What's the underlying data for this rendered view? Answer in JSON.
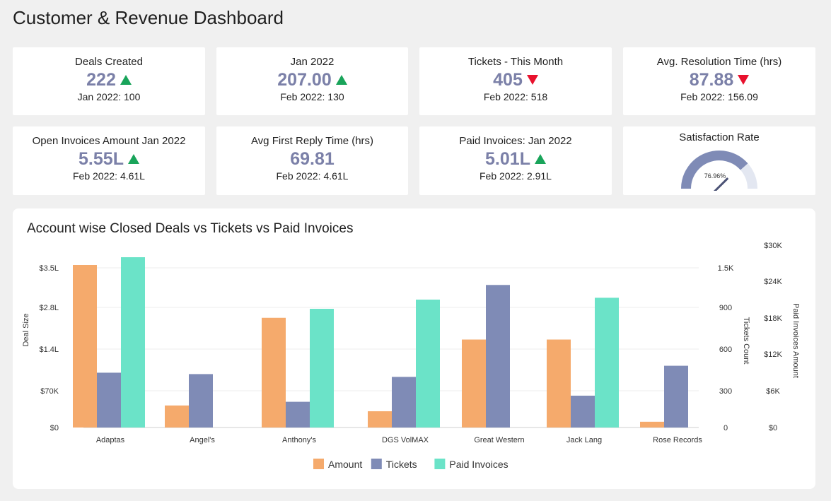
{
  "page": {
    "title": "Customer & Revenue Dashboard"
  },
  "colors": {
    "amount": "#f5aa6c",
    "tickets": "#7f8bb6",
    "paid": "#6be3c8",
    "up": "#19a45a",
    "down": "#e8112d",
    "value": "#7b80a8"
  },
  "kpis": [
    {
      "label": "Deals Created",
      "value": "222",
      "trend": "up",
      "sub": "Jan 2022: 100"
    },
    {
      "label": "Jan 2022",
      "value": "207.00",
      "trend": "up",
      "sub": "Feb 2022: 130"
    },
    {
      "label": "Tickets - This Month",
      "value": "405",
      "trend": "down",
      "sub": "Feb 2022: 518"
    },
    {
      "label": "Avg. Resolution Time (hrs)",
      "value": "87.88",
      "trend": "down",
      "sub": "Feb 2022: 156.09"
    },
    {
      "label": "Open Invoices Amount Jan 2022",
      "value": "5.55L",
      "trend": "up",
      "sub": "Feb 2022: 4.61L"
    },
    {
      "label": "Avg First Reply Time (hrs)",
      "value": "69.81",
      "trend": "none",
      "sub": "Feb 2022: 4.61L"
    },
    {
      "label": "Paid Invoices: Jan 2022",
      "value": "5.01L",
      "trend": "up",
      "sub": "Feb 2022: 2.91L"
    }
  ],
  "gauge": {
    "label": "Satisfaction Rate",
    "value_label": "76.96%",
    "value": 76.96
  },
  "chart_data": {
    "type": "bar",
    "title": "Account wise Closed Deals vs Tickets vs Paid Invoices",
    "categories": [
      "Adaptas",
      "Angel's",
      "Anthony's",
      "DGS VolMAX",
      "Great Western",
      "Jack Lang",
      "Rose Records"
    ],
    "ylabel": "Deal Size",
    "y2label": "Tickets Count",
    "y3label": "Paid Invoices Amount",
    "y_ticks": [
      "$0",
      "$70K",
      "$1.4L",
      "$2.8L",
      "$3.5L"
    ],
    "y2_ticks": [
      "0",
      "300",
      "600",
      "900",
      "1.5K"
    ],
    "y3_ticks": [
      "$0",
      "$6K",
      "$12K",
      "$18K",
      "$24K",
      "$30K"
    ],
    "series": [
      {
        "name": "Amount",
        "axis": "y",
        "values": [
          3.55,
          0.42,
          2.45,
          0.31,
          1.72,
          1.72,
          0.11
        ]
      },
      {
        "name": "Tickets",
        "axis": "y2",
        "values": [
          430,
          420,
          210,
          400,
          1240,
          260,
          480
        ]
      },
      {
        "name": "Paid Invoices",
        "axis": "y3",
        "values": [
          28000,
          0,
          19500,
          21000,
          0,
          21300,
          0
        ]
      }
    ],
    "legend": "bottom-center",
    "grid": true
  }
}
